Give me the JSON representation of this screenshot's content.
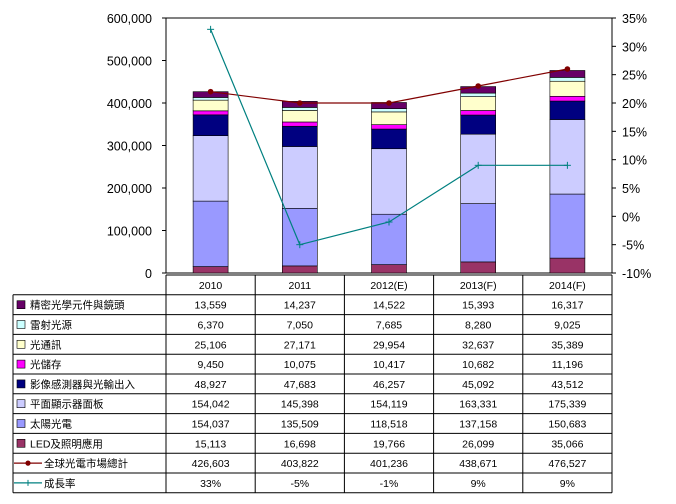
{
  "chart_data": {
    "type": "bar",
    "subtype": "stacked-bar-with-lines-and-data-table",
    "categories": [
      "2010",
      "2011",
      "2012(E)",
      "2013(F)",
      "2014(F)"
    ],
    "y_left": {
      "min": 0,
      "max": 600000,
      "step": 100000,
      "tick_labels": [
        "0",
        "100,000",
        "200,000",
        "300,000",
        "400,000",
        "500,000",
        "600,000"
      ]
    },
    "y_right": {
      "min": -10,
      "max": 35,
      "step": 5,
      "tick_labels": [
        "-10%",
        "-5%",
        "0%",
        "5%",
        "10%",
        "15%",
        "20%",
        "25%",
        "30%",
        "35%"
      ]
    },
    "grid": "none",
    "series": [
      {
        "name": "LED及照明應用",
        "kind": "bar",
        "color": "#993366",
        "values": [
          15113,
          16698,
          19766,
          26099,
          35066
        ],
        "labels": [
          "15,113",
          "16,698",
          "19,766",
          "26,099",
          "35,066"
        ]
      },
      {
        "name": "太陽光電",
        "kind": "bar",
        "color": "#9999FF",
        "values": [
          154037,
          135509,
          118518,
          137158,
          150683
        ],
        "labels": [
          "154,037",
          "135,509",
          "118,518",
          "137,158",
          "150,683"
        ]
      },
      {
        "name": "平面顯示器面板",
        "kind": "bar",
        "color": "#CCCCFF",
        "values": [
          154042,
          145398,
          154119,
          163331,
          175339
        ],
        "labels": [
          "154,042",
          "145,398",
          "154,119",
          "163,331",
          "175,339"
        ]
      },
      {
        "name": "影像感測器與光輸出入",
        "kind": "bar",
        "color": "#000080",
        "values": [
          48927,
          47683,
          46257,
          45092,
          43512
        ],
        "labels": [
          "48,927",
          "47,683",
          "46,257",
          "45,092",
          "43,512"
        ]
      },
      {
        "name": "光儲存",
        "kind": "bar",
        "color": "#FF00FF",
        "values": [
          9450,
          10075,
          10417,
          10682,
          11196
        ],
        "labels": [
          "9,450",
          "10,075",
          "10,417",
          "10,682",
          "11,196"
        ]
      },
      {
        "name": "光通訊",
        "kind": "bar",
        "color": "#FFFFCC",
        "values": [
          25106,
          27171,
          29954,
          32637,
          35389
        ],
        "labels": [
          "25,106",
          "27,171",
          "29,954",
          "32,637",
          "35,389"
        ]
      },
      {
        "name": "雷射光源",
        "kind": "bar",
        "color": "#CCFFFF",
        "values": [
          6370,
          7050,
          7685,
          8280,
          9025
        ],
        "labels": [
          "6,370",
          "7,050",
          "7,685",
          "8,280",
          "9,025"
        ]
      },
      {
        "name": "精密光學元件與鏡頭",
        "kind": "bar",
        "color": "#660066",
        "values": [
          13559,
          14237,
          14522,
          15393,
          16317
        ],
        "labels": [
          "13,559",
          "14,237",
          "14,522",
          "15,393",
          "16,317"
        ]
      },
      {
        "name": "全球光電市場總計",
        "kind": "line",
        "axis": "right",
        "color": "#800000",
        "values": [
          426603,
          403822,
          401236,
          438671,
          476527
        ],
        "labels": [
          "426,603",
          "403,822",
          "401,236",
          "438,671",
          "476,527"
        ]
      },
      {
        "name": "成長率",
        "kind": "line",
        "axis": "right",
        "color": "#008080",
        "values": [
          33,
          -5,
          -1,
          9,
          9
        ],
        "labels": [
          "33%",
          "-5%",
          "-1%",
          "9%",
          "9%"
        ]
      }
    ],
    "table_row_order": [
      7,
      6,
      5,
      4,
      3,
      2,
      1,
      0,
      8,
      9
    ],
    "total_line_right_axis_values": [
      22,
      20,
      20,
      23,
      26
    ]
  }
}
